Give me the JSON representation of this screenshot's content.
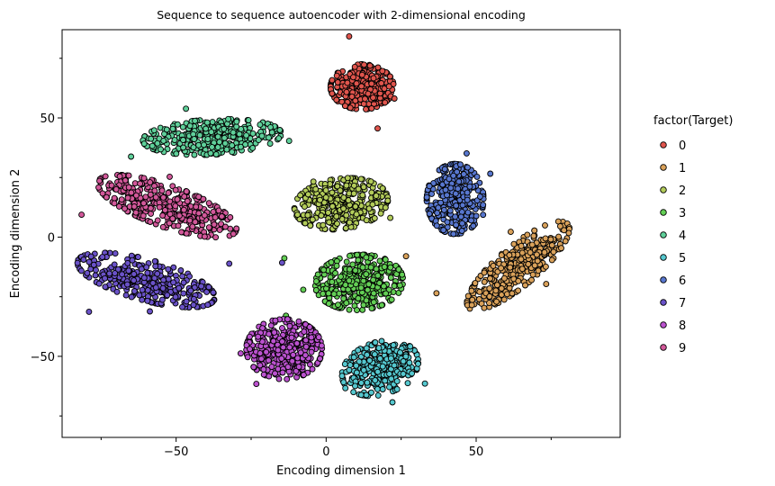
{
  "chart_data": {
    "type": "scatter",
    "title": "Sequence to sequence autoencoder with 2-dimensional encoding",
    "xlabel": "Encoding dimension 1",
    "ylabel": "Encoding dimension 2",
    "xlim": [
      -88,
      98
    ],
    "ylim": [
      -84,
      87
    ],
    "xticks": [
      -50,
      0,
      50
    ],
    "yticks": [
      -50,
      0,
      50
    ],
    "xtick_labels": [
      "−50",
      "0",
      "50"
    ],
    "ytick_labels": [
      "−50",
      "0",
      "50"
    ],
    "grid": false,
    "legend": {
      "title": "factor(Target)",
      "placement": "right",
      "labels": [
        "0",
        "1",
        "2",
        "3",
        "4",
        "5",
        "6",
        "7",
        "8",
        "9"
      ]
    },
    "series": [
      {
        "name": "0",
        "color": "#e0554d",
        "clusters": [
          {
            "center": [
              12,
              63
            ],
            "spread": [
              10,
              9
            ],
            "angle": 0,
            "n": 360
          }
        ]
      },
      {
        "name": "1",
        "color": "#d9a15a",
        "clusters": [
          {
            "center": [
              64,
              -12
            ],
            "spread": [
              23,
              7
            ],
            "angle": 48,
            "n": 330
          }
        ]
      },
      {
        "name": "2",
        "color": "#b3cc5a",
        "clusters": [
          {
            "center": [
              5,
              14
            ],
            "spread": [
              15,
              10
            ],
            "angle": 12,
            "n": 340
          }
        ]
      },
      {
        "name": "3",
        "color": "#63cf55",
        "clusters": [
          {
            "center": [
              11,
              -19
            ],
            "spread": [
              14,
              11
            ],
            "angle": 8,
            "n": 340
          }
        ]
      },
      {
        "name": "4",
        "color": "#5fd09a",
        "clusters": [
          {
            "center": [
              -38,
              42
            ],
            "spread": [
              22,
              7
            ],
            "angle": 4,
            "n": 330
          }
        ]
      },
      {
        "name": "5",
        "color": "#55c8cf",
        "clusters": [
          {
            "center": [
              18,
              -55
            ],
            "spread": [
              13,
              10
            ],
            "angle": 35,
            "n": 320
          }
        ]
      },
      {
        "name": "6",
        "color": "#5877cf",
        "clusters": [
          {
            "center": [
              43,
              16
            ],
            "spread": [
              9,
              14
            ],
            "angle": 0,
            "n": 320
          }
        ]
      },
      {
        "name": "7",
        "color": "#6a52c8",
        "clusters": [
          {
            "center": [
              -60,
              -18
            ],
            "spread": [
              23,
              8
            ],
            "angle": -20,
            "n": 320
          }
        ]
      },
      {
        "name": "8",
        "color": "#bb52cf",
        "clusters": [
          {
            "center": [
              -14,
              -47
            ],
            "spread": [
              12,
              12
            ],
            "angle": 0,
            "n": 340
          }
        ]
      },
      {
        "name": "9",
        "color": "#d2589a",
        "clusters": [
          {
            "center": [
              -53,
              13
            ],
            "spread": [
              24,
              8
            ],
            "angle": -25,
            "n": 350
          }
        ]
      }
    ]
  }
}
